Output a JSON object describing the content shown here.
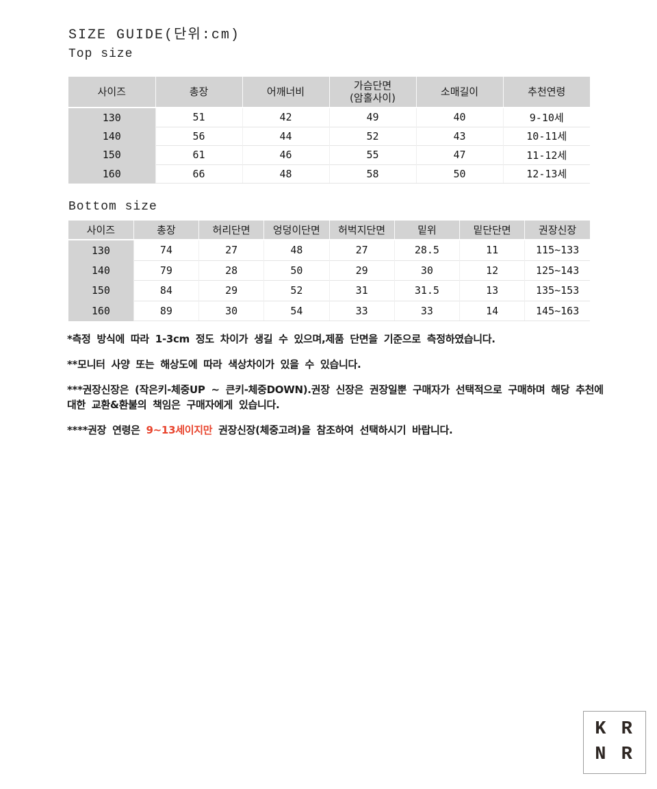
{
  "page": {
    "title": "SIZE GUIDE(단위:cm)",
    "top_section_label": "Top size",
    "bottom_section_label": "Bottom size"
  },
  "top_table": {
    "headers": [
      "사이즈",
      "총장",
      "어깨너비",
      "가슴단면\n(암홀사이)",
      "소매길이",
      "추천연령"
    ],
    "rows": [
      [
        "130",
        "51",
        "42",
        "49",
        "40",
        "9-10세"
      ],
      [
        "140",
        "56",
        "44",
        "52",
        "43",
        "10-11세"
      ],
      [
        "150",
        "61",
        "46",
        "55",
        "47",
        "11-12세"
      ],
      [
        "160",
        "66",
        "48",
        "58",
        "50",
        "12-13세"
      ]
    ]
  },
  "bottom_table": {
    "headers": [
      "사이즈",
      "총장",
      "허리단면",
      "엉덩이단면",
      "허벅지단면",
      "밑위",
      "밑단단면",
      "권장신장"
    ],
    "rows": [
      [
        "130",
        "74",
        "27",
        "48",
        "27",
        "28.5",
        "11",
        "115~133"
      ],
      [
        "140",
        "79",
        "28",
        "50",
        "29",
        "30",
        "12",
        "125~143"
      ],
      [
        "150",
        "84",
        "29",
        "52",
        "31",
        "31.5",
        "13",
        "135~153"
      ],
      [
        "160",
        "89",
        "30",
        "54",
        "33",
        "33",
        "14",
        "145~163"
      ]
    ]
  },
  "notes": {
    "note1": "*측정 방식에 따라 1-3cm 정도 차이가 생길 수 있으며,제품 단면을 기준으로 측정하였습니다.",
    "note2": "**모니터 사양 또는 해상도에 따라 색상차이가 있을 수 있습니다.",
    "note3": "***권장신장은 (작은키-체중UP ~ 큰키-체중DOWN).권장 신장은 권장일뿐 구매자가 선택적으로 구매하며 해당 추천에 대한 교환&환불의 책임은 구매자에게 있습니다.",
    "note4_prefix": "****권장 연령은 ",
    "note4_highlight": "9~13세이지만",
    "note4_suffix": " 권장신장(체중고려)을 참조하여 선택하시기 바랍니다."
  },
  "badge": {
    "line1": "K R",
    "line2": "N R"
  },
  "colors": {
    "table_header_bg": "#d3d3d3",
    "highlight_red": "#e8432c",
    "row_border": "#e4e4e4"
  }
}
